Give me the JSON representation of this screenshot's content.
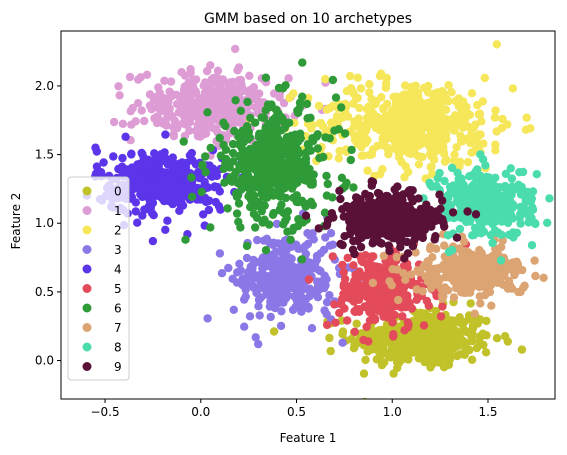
{
  "chart_data": {
    "type": "scatter",
    "title": "GMM based on 10 archetypes",
    "xlabel": "Feature 1",
    "ylabel": "Feature 2",
    "xlim": [
      -0.73,
      1.85
    ],
    "ylim": [
      -0.28,
      2.4
    ],
    "xticks": [
      -0.5,
      0.0,
      0.5,
      1.0,
      1.5
    ],
    "xtick_labels": [
      "−0.5",
      "0.0",
      "0.5",
      "1.0",
      "1.5"
    ],
    "yticks": [
      0.0,
      0.5,
      1.0,
      1.5,
      2.0
    ],
    "ytick_labels": [
      "0.0",
      "0.5",
      "1.0",
      "1.5",
      "2.0"
    ],
    "grid": false,
    "legend_position": "center-left",
    "series": [
      {
        "name": "0",
        "color": "#c1c129",
        "center": [
          1.15,
          0.16
        ],
        "spread": [
          0.19,
          0.11
        ],
        "points": 320,
        "outliers": [
          [
            1.25,
            0.02
          ],
          [
            1.2,
            -0.05
          ],
          [
            0.95,
            0.05
          ]
        ]
      },
      {
        "name": "1",
        "color": "#dd9dd4",
        "center": [
          0.05,
          1.85
        ],
        "spread": [
          0.2,
          0.13
        ],
        "points": 260,
        "outliers": [
          [
            0.18,
            2.27
          ],
          [
            -0.1,
            2.1
          ],
          [
            0.05,
            2.15
          ]
        ]
      },
      {
        "name": "2",
        "color": "#f5e65a",
        "center": [
          1.1,
          1.72
        ],
        "spread": [
          0.27,
          0.17
        ],
        "points": 360,
        "outliers": [
          [
            0.65,
            2.05
          ],
          [
            0.82,
            2.06
          ],
          [
            1.45,
            1.55
          ]
        ]
      },
      {
        "name": "3",
        "color": "#8c77e7",
        "center": [
          0.45,
          0.62
        ],
        "spread": [
          0.14,
          0.17
        ],
        "points": 220,
        "outliers": [
          [
            0.1,
            0.78
          ],
          [
            0.3,
            0.12
          ],
          [
            0.68,
            0.3
          ]
        ]
      },
      {
        "name": "4",
        "color": "#5c35ea",
        "center": [
          -0.2,
          1.3
        ],
        "spread": [
          0.17,
          0.12
        ],
        "points": 300,
        "outliers": [
          [
            -0.55,
            1.55
          ],
          [
            -0.25,
            0.87
          ],
          [
            -0.07,
            0.92
          ]
        ]
      },
      {
        "name": "5",
        "color": "#e34b5a",
        "center": [
          0.95,
          0.52
        ],
        "spread": [
          0.12,
          0.15
        ],
        "points": 240,
        "outliers": [
          [
            0.66,
            0.26
          ],
          [
            0.85,
            0.15
          ]
        ]
      },
      {
        "name": "6",
        "color": "#2f9a38",
        "center": [
          0.38,
          1.42
        ],
        "spread": [
          0.17,
          0.22
        ],
        "points": 340,
        "outliers": [
          [
            0.53,
            2.17
          ],
          [
            0.05,
            0.97
          ],
          [
            -0.08,
            0.88
          ],
          [
            0.34,
            2.06
          ]
        ]
      },
      {
        "name": "7",
        "color": "#dba472",
        "center": [
          1.4,
          0.65
        ],
        "spread": [
          0.15,
          0.09
        ],
        "points": 240,
        "outliers": [
          [
            1.67,
            0.5
          ],
          [
            1.65,
            0.72
          ]
        ]
      },
      {
        "name": "8",
        "color": "#4bdcae",
        "center": [
          1.48,
          1.15
        ],
        "spread": [
          0.13,
          0.13
        ],
        "points": 260,
        "outliers": [
          [
            1.73,
            0.84
          ],
          [
            1.66,
            1.28
          ]
        ]
      },
      {
        "name": "9",
        "color": "#5a1138",
        "center": [
          0.98,
          1.03
        ],
        "spread": [
          0.14,
          0.1
        ],
        "points": 320,
        "outliers": []
      }
    ]
  }
}
